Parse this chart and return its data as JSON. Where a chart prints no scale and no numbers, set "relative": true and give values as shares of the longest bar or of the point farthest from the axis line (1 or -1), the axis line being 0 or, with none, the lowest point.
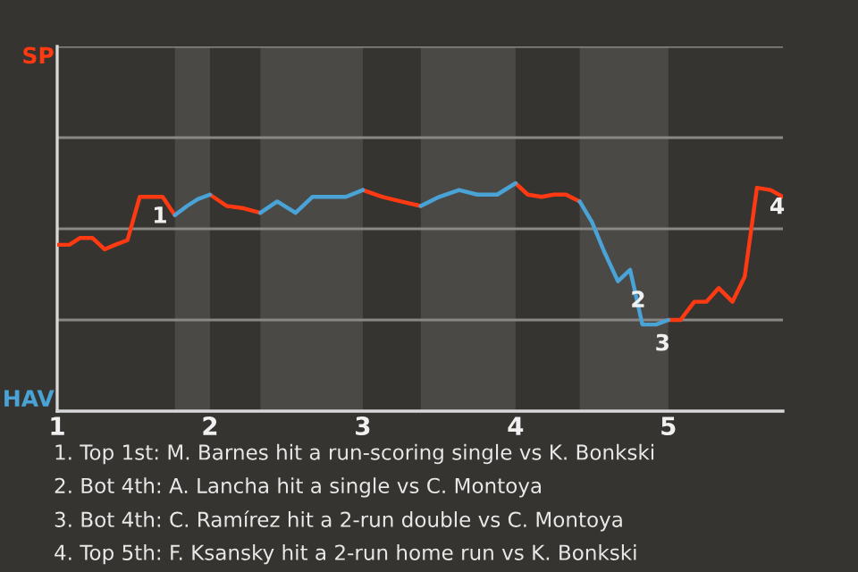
{
  "chart_data": {
    "type": "line",
    "relative": true,
    "x": [
      1,
      1.08,
      1.15,
      1.23,
      1.31,
      1.38,
      1.46,
      1.54,
      1.62,
      1.69,
      1.77,
      1.85,
      1.92,
      2,
      2.11,
      2.22,
      2.33,
      2.44,
      2.56,
      2.67,
      2.78,
      2.89,
      3,
      3.13,
      3.25,
      3.38,
      3.5,
      3.63,
      3.75,
      3.88,
      4,
      4.08,
      4.17,
      4.25,
      4.33,
      4.42,
      4.5,
      4.58,
      4.67,
      4.75,
      4.83,
      4.92,
      5,
      5.08,
      5.17,
      5.25,
      5.33,
      5.42,
      5.5,
      5.58,
      5.67,
      5.75
    ],
    "xlim": [
      1,
      5.75
    ],
    "xticks": [
      1,
      2,
      3,
      4,
      5
    ],
    "legend": false,
    "ref_lines": [
      {
        "axis": "y",
        "value": 0.4,
        "color": "#8a8886"
      },
      {
        "axis": "y",
        "value": 0.8,
        "color": "#8a8886"
      },
      {
        "axis": "y",
        "value": 1.2,
        "color": "#8a8886"
      },
      {
        "axis": "y",
        "value": 1.6,
        "color": "#8a8886"
      }
    ],
    "series": [
      {
        "color": "#ff3a12",
        "values": [
          0.73,
          0.73,
          0.76,
          0.76,
          0.71,
          0.73,
          0.75,
          0.94,
          0.94,
          0.94,
          0.86,
          null,
          null,
          0.95,
          0.9,
          0.89,
          0.87,
          null,
          null,
          null,
          null,
          null,
          0.97,
          0.94,
          0.92,
          0.9,
          null,
          null,
          null,
          null,
          1,
          0.95,
          0.94,
          0.95,
          0.95,
          0.92,
          null,
          null,
          null,
          null,
          null,
          null,
          0.4,
          0.4,
          0.48,
          0.48,
          0.54,
          0.48,
          0.59,
          0.98,
          0.97,
          0.94
        ]
      },
      {
        "color": "#4aa3d6",
        "values": [
          null,
          null,
          null,
          null,
          null,
          null,
          null,
          null,
          null,
          null,
          0.86,
          0.9,
          0.93,
          0.95,
          null,
          null,
          0.87,
          0.92,
          0.87,
          0.94,
          0.94,
          0.94,
          0.97,
          null,
          null,
          0.9,
          0.94,
          0.97,
          0.95,
          0.95,
          1,
          null,
          null,
          null,
          null,
          0.92,
          0.83,
          0.7,
          0.57,
          0.62,
          0.38,
          0.38,
          0.4,
          null,
          null,
          null,
          null,
          null,
          null,
          null,
          null,
          null
        ]
      }
    ],
    "bands": [
      {
        "axis": "x",
        "from": 1.77,
        "to": 2,
        "color": "#4b4946"
      },
      {
        "axis": "x",
        "from": 2.33,
        "to": 3,
        "color": "#4b4946"
      },
      {
        "axis": "x",
        "from": 3.38,
        "to": 4,
        "color": "#4b4946"
      },
      {
        "axis": "x",
        "from": 4.42,
        "to": 5,
        "color": "#4b4946"
      }
    ],
    "annotations": [
      "SP",
      "HAV",
      {
        "text": "1",
        "x": 1.54,
        "y": 0.94
      },
      {
        "text": "2",
        "x": 4.67,
        "y": 0.57
      },
      {
        "text": "3",
        "x": 4.83,
        "y": 0.38
      },
      {
        "text": "4",
        "x": 5.58,
        "y": 0.98
      },
      "1. Top 1st: M. Barnes hit a run-scoring single vs K. Bonkski",
      "2. Bot 4th: A. Lancha hit a single vs C. Montoya",
      "3. Bot 4th: C. Ramírez hit a 2-run double vs C. Montoya",
      "4. Top 5th: F. Ksansky hit a 2-run home run vs K. Bonkski"
    ]
  }
}
